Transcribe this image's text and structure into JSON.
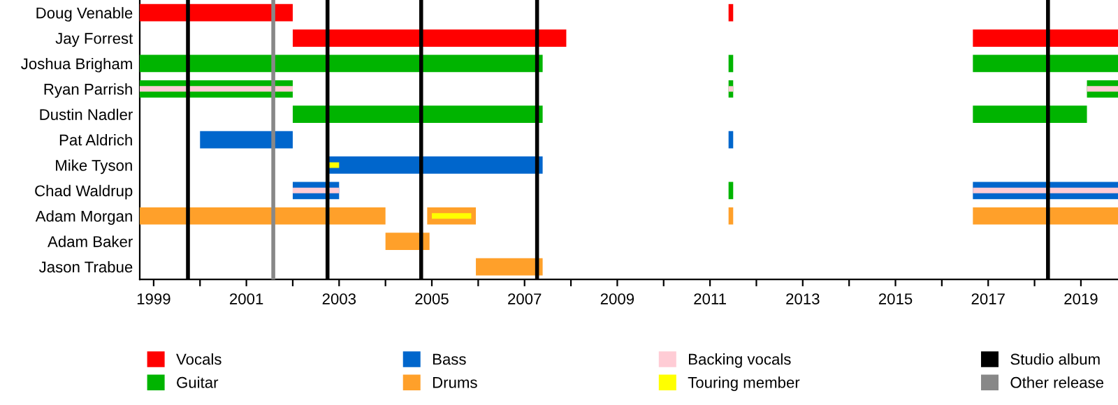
{
  "chart_data": {
    "type": "bar",
    "orientation": "horizontal",
    "legend": "bottom",
    "categories": [
      "Doug Venable",
      "Jay Forrest",
      "Joshua Brigham",
      "Ryan Parrish",
      "Dustin Nadler",
      "Pat Aldrich",
      "Mike Tyson",
      "Chad Waldrup",
      "Adam Morgan",
      "Adam Baker",
      "Jason Trabue"
    ],
    "xlim": [
      1998.7,
      2019.8
    ],
    "xticks": [
      1999,
      {
        "value": 2000,
        "label": null
      },
      2001,
      {
        "value": 2002,
        "label": null
      },
      2003,
      {
        "value": 2004,
        "label": null
      },
      2005,
      {
        "value": 2006,
        "label": null
      },
      2007,
      {
        "value": 2008,
        "label": null
      },
      2009,
      {
        "value": 2010,
        "label": null
      },
      2011,
      {
        "value": 2012,
        "label": null
      },
      2013,
      {
        "value": 2014,
        "label": null
      },
      2015,
      {
        "value": 2016,
        "label": null
      },
      2017,
      {
        "value": 2018,
        "label": null
      },
      2019
    ],
    "series": [
      {
        "name": "Vocals",
        "color": "#ff0000",
        "base": [
          1998.7,
          2002.0,
          null,
          null,
          null,
          null,
          null,
          null,
          null,
          null,
          null
        ],
        "values": [
          3.3,
          5.9,
          null,
          null,
          null,
          null,
          null,
          null,
          null,
          null,
          null
        ]
      },
      {
        "name": "Guitar",
        "color": "#00b400",
        "base": [
          null,
          null,
          1998.7,
          1998.7,
          2002.0,
          null,
          null,
          2011.4,
          null,
          null,
          null
        ],
        "values": [
          null,
          null,
          8.69,
          3.3,
          5.39,
          null,
          null,
          0.1,
          null,
          null,
          null
        ]
      },
      {
        "name": "Bass",
        "color": "#0066cc",
        "base": [
          null,
          null,
          null,
          null,
          null,
          2000.0,
          2002.75,
          2002.0,
          null,
          null,
          null
        ],
        "values": [
          null,
          null,
          null,
          null,
          null,
          2.0,
          4.64,
          1.0,
          null,
          null,
          null
        ]
      },
      {
        "name": "Drums",
        "color": "#ffa02a",
        "base": [
          null,
          null,
          null,
          null,
          null,
          null,
          null,
          null,
          1998.7,
          2004.0,
          2005.95
        ],
        "values": [
          null,
          null,
          null,
          null,
          null,
          null,
          null,
          null,
          5.3,
          0.95,
          1.44
        ]
      },
      {
        "name": "Backing vocals",
        "color": "#ffccd5",
        "base": [
          null,
          null,
          null,
          1998.7,
          null,
          null,
          null,
          2002.0,
          null,
          null,
          null
        ],
        "values": [
          null,
          null,
          null,
          3.3,
          null,
          null,
          null,
          1.0,
          null,
          null,
          null
        ]
      },
      {
        "name": "Touring member",
        "color": "#ffff00",
        "base": [
          null,
          null,
          null,
          null,
          null,
          null,
          2002.75,
          null,
          2005.0,
          null,
          null
        ],
        "values": [
          null,
          null,
          null,
          null,
          null,
          null,
          0.25,
          null,
          0.85,
          null,
          null
        ]
      },
      {
        "color": "#ff0000",
        "base": [
          2011.4,
          2016.67,
          null,
          null,
          null,
          null,
          null,
          null,
          null,
          null,
          null
        ],
        "values": [
          0.1,
          3.13,
          null,
          null,
          null,
          null,
          null,
          null,
          null,
          null,
          null
        ]
      },
      {
        "color": "#00b400",
        "base": [
          null,
          null,
          2011.4,
          2011.4,
          2016.67,
          null,
          null,
          null,
          null,
          null,
          null
        ],
        "values": [
          null,
          null,
          0.1,
          0.1,
          2.46,
          null,
          null,
          null,
          null,
          null,
          null
        ]
      },
      {
        "color": "#00b400",
        "base": [
          null,
          null,
          2016.67,
          2019.13,
          null,
          null,
          null,
          null,
          null,
          null,
          null
        ],
        "values": [
          null,
          null,
          3.13,
          0.67,
          null,
          null,
          null,
          null,
          null,
          null,
          null
        ]
      },
      {
        "color": "#0066cc",
        "base": [
          null,
          null,
          null,
          null,
          null,
          2011.4,
          null,
          2016.67,
          null,
          null,
          null
        ],
        "values": [
          null,
          null,
          null,
          null,
          null,
          0.1,
          null,
          3.13,
          null,
          null,
          null
        ]
      },
      {
        "color": "#ffa02a",
        "base": [
          null,
          null,
          null,
          null,
          null,
          null,
          null,
          null,
          2004.9,
          null,
          null
        ],
        "values": [
          null,
          null,
          null,
          null,
          null,
          null,
          null,
          null,
          1.05,
          null,
          null
        ]
      },
      {
        "color": "#ffa02a",
        "base": [
          null,
          null,
          null,
          null,
          null,
          null,
          null,
          null,
          2011.4,
          null,
          null
        ],
        "values": [
          null,
          null,
          null,
          null,
          null,
          null,
          null,
          null,
          0.1,
          null,
          null
        ]
      },
      {
        "color": "#ffa02a",
        "base": [
          null,
          null,
          null,
          null,
          null,
          null,
          null,
          null,
          2016.67,
          null,
          null
        ],
        "values": [
          null,
          null,
          null,
          null,
          null,
          null,
          null,
          null,
          3.13,
          null,
          null
        ]
      },
      {
        "color": "#ffccd5",
        "base": [
          null,
          null,
          null,
          2011.4,
          null,
          null,
          null,
          null,
          null,
          null,
          null
        ],
        "values": [
          null,
          null,
          null,
          0.1,
          null,
          null,
          null,
          null,
          null,
          null,
          null
        ]
      },
      {
        "color": "#ffccd5",
        "base": [
          null,
          null,
          null,
          2019.13,
          null,
          null,
          null,
          2016.67,
          null,
          null,
          null
        ],
        "values": [
          null,
          null,
          null,
          0.67,
          null,
          null,
          null,
          3.13,
          null,
          null,
          null
        ]
      }
    ],
    "ref_lines": [
      {
        "axis": "x",
        "value": 1999.74,
        "label": "Studio album",
        "color": "#000000"
      },
      {
        "axis": "x",
        "value": 2001.58,
        "label": "Other release",
        "color": "#888888"
      },
      {
        "axis": "x",
        "value": 2002.75,
        "color": "#000000"
      },
      {
        "axis": "x",
        "value": 2004.77,
        "color": "#000000"
      },
      {
        "axis": "x",
        "value": 2007.27,
        "color": "#000000"
      },
      {
        "axis": "x",
        "value": 2018.29,
        "color": "#000000"
      }
    ]
  }
}
